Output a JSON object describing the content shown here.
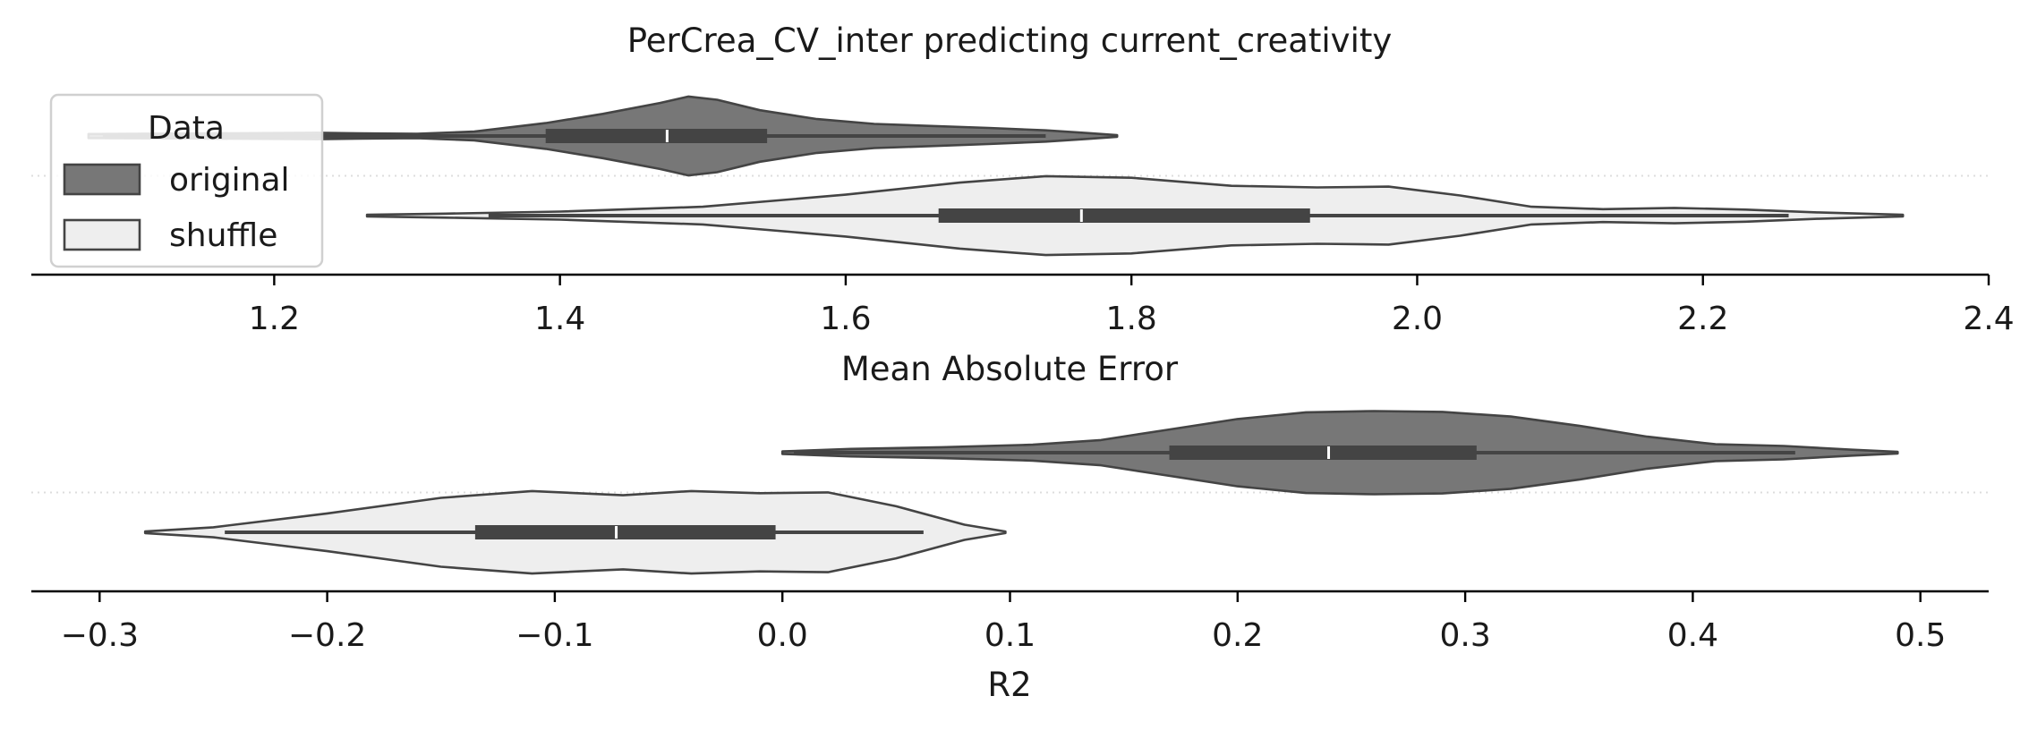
{
  "title": "PerCrea_CV_inter predicting current_creativity",
  "legend": {
    "title": "Data",
    "placement": "upper-left",
    "items": [
      {
        "label": "original",
        "color": "#777777"
      },
      {
        "label": "shuffle",
        "color": "#eeeeee"
      }
    ]
  },
  "colors": {
    "edge": "#444444",
    "box": "#444444",
    "median": "#ffffff",
    "axis": "#000000",
    "divider": "#dddddd"
  },
  "chart_data": [
    {
      "type": "violin",
      "orient": "horizontal",
      "xlabel": "Mean Absolute Error",
      "xlim": [
        1.03,
        2.4
      ],
      "xticks": [
        1.2,
        1.4,
        1.6,
        1.8,
        2.0,
        2.2,
        2.4
      ],
      "xtick_labels": [
        "1.2",
        "1.4",
        "1.6",
        "1.8",
        "2.0",
        "2.2",
        "2.4"
      ],
      "grid": false,
      "series": [
        {
          "name": "original",
          "row": 0,
          "kde_min": 1.07,
          "kde_max": 1.79,
          "whisker_low": 1.08,
          "q1": 1.39,
          "median": 1.475,
          "q3": 1.545,
          "whisker_high": 1.74,
          "density": [
            [
              1.07,
              0.05
            ],
            [
              1.13,
              0.06
            ],
            [
              1.19,
              0.07
            ],
            [
              1.23,
              0.08
            ],
            [
              1.26,
              0.065
            ],
            [
              1.3,
              0.055
            ],
            [
              1.34,
              0.11
            ],
            [
              1.39,
              0.32
            ],
            [
              1.43,
              0.55
            ],
            [
              1.47,
              0.82
            ],
            [
              1.49,
              0.98
            ],
            [
              1.51,
              0.9
            ],
            [
              1.54,
              0.64
            ],
            [
              1.58,
              0.42
            ],
            [
              1.62,
              0.3
            ],
            [
              1.66,
              0.25
            ],
            [
              1.7,
              0.2
            ],
            [
              1.74,
              0.14
            ],
            [
              1.77,
              0.07
            ],
            [
              1.79,
              0.02
            ]
          ]
        },
        {
          "name": "shuffle",
          "row": 1,
          "kde_min": 1.265,
          "kde_max": 2.34,
          "whisker_low": 1.35,
          "q1": 1.665,
          "median": 1.765,
          "q3": 1.925,
          "whisker_high": 2.26,
          "density": [
            [
              1.265,
              0.02
            ],
            [
              1.32,
              0.05
            ],
            [
              1.4,
              0.1
            ],
            [
              1.5,
              0.22
            ],
            [
              1.6,
              0.52
            ],
            [
              1.68,
              0.82
            ],
            [
              1.74,
              0.98
            ],
            [
              1.8,
              0.94
            ],
            [
              1.87,
              0.74
            ],
            [
              1.93,
              0.7
            ],
            [
              1.98,
              0.72
            ],
            [
              2.03,
              0.5
            ],
            [
              2.08,
              0.22
            ],
            [
              2.13,
              0.16
            ],
            [
              2.18,
              0.19
            ],
            [
              2.23,
              0.15
            ],
            [
              2.28,
              0.08
            ],
            [
              2.34,
              0.02
            ]
          ]
        }
      ]
    },
    {
      "type": "violin",
      "orient": "horizontal",
      "xlabel": "R2",
      "xlim": [
        -0.33,
        0.53
      ],
      "xticks": [
        -0.3,
        -0.2,
        -0.1,
        0.0,
        0.1,
        0.2,
        0.3,
        0.4,
        0.5
      ],
      "xtick_labels": [
        "−0.3",
        "−0.2",
        "−0.1",
        "0.0",
        "0.1",
        "0.2",
        "0.3",
        "0.4",
        "0.5"
      ],
      "grid": false,
      "series": [
        {
          "name": "original",
          "row": 0,
          "kde_min": 0.0,
          "kde_max": 0.49,
          "whisker_low": 0.005,
          "q1": 0.17,
          "median": 0.24,
          "q3": 0.305,
          "whisker_high": 0.445,
          "density": [
            [
              0.0,
              0.03
            ],
            [
              0.03,
              0.09
            ],
            [
              0.07,
              0.13
            ],
            [
              0.11,
              0.19
            ],
            [
              0.14,
              0.3
            ],
            [
              0.17,
              0.55
            ],
            [
              0.2,
              0.8
            ],
            [
              0.23,
              0.96
            ],
            [
              0.26,
              0.99
            ],
            [
              0.29,
              0.97
            ],
            [
              0.32,
              0.86
            ],
            [
              0.35,
              0.64
            ],
            [
              0.38,
              0.38
            ],
            [
              0.41,
              0.2
            ],
            [
              0.44,
              0.16
            ],
            [
              0.47,
              0.07
            ],
            [
              0.49,
              0.02
            ]
          ]
        },
        {
          "name": "shuffle",
          "row": 1,
          "kde_min": -0.28,
          "kde_max": 0.098,
          "whisker_low": -0.245,
          "q1": -0.135,
          "median": -0.073,
          "q3": -0.003,
          "whisker_high": 0.062,
          "density": [
            [
              -0.28,
              0.02
            ],
            [
              -0.25,
              0.12
            ],
            [
              -0.2,
              0.45
            ],
            [
              -0.15,
              0.82
            ],
            [
              -0.11,
              0.98
            ],
            [
              -0.07,
              0.88
            ],
            [
              -0.04,
              0.98
            ],
            [
              -0.01,
              0.93
            ],
            [
              0.02,
              0.95
            ],
            [
              0.05,
              0.62
            ],
            [
              0.08,
              0.18
            ],
            [
              0.098,
              0.02
            ]
          ]
        }
      ]
    }
  ]
}
